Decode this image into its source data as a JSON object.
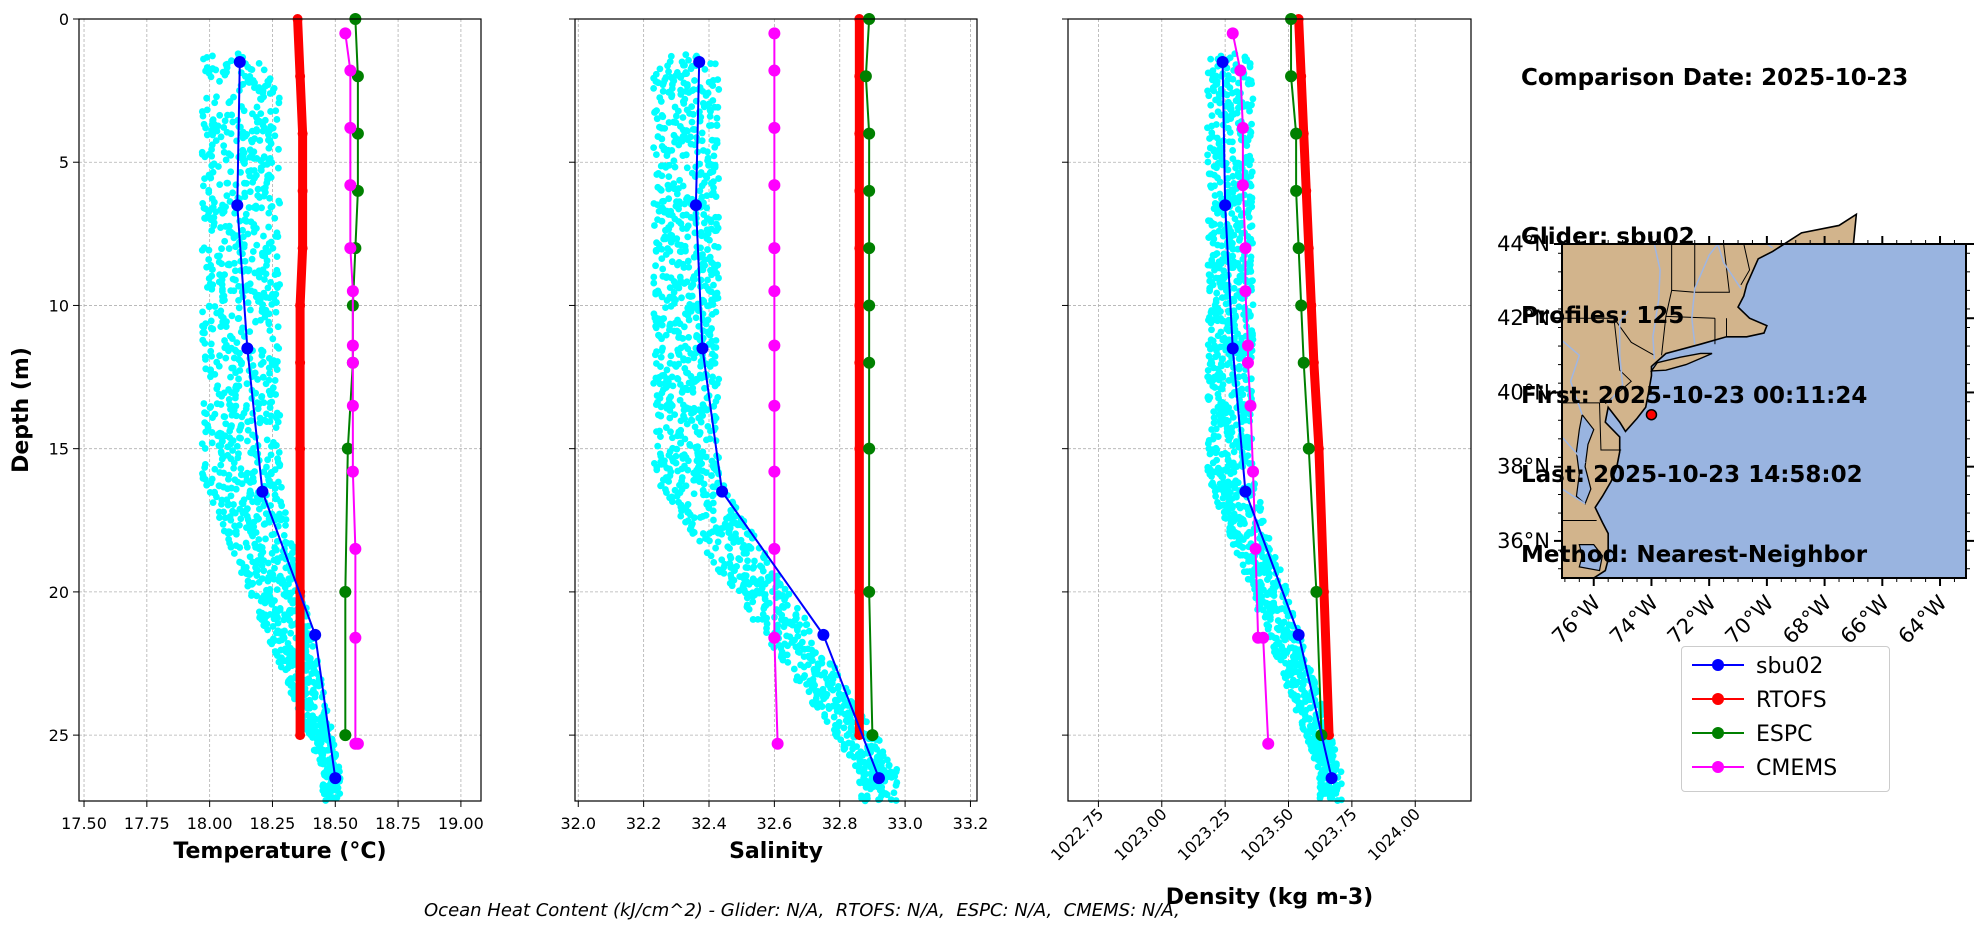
{
  "colors": {
    "sbu02": "#0000ff",
    "rtofs": "#ff0000",
    "espc": "#008000",
    "cmems": "#ff00ff",
    "scatter": "#00ffff",
    "land": "#d2b48c",
    "ocean": "#99b4e0"
  },
  "info": {
    "comparison_date": "Comparison Date: 2025-10-23",
    "glider": "Glider: sbu02",
    "profiles": "Profiles: 125",
    "first": "First: 2025-10-23 00:11:24",
    "last": "Last: 2025-10-23 14:58:02",
    "method": "Method: Nearest-Neighbor"
  },
  "footer": "Ocean Heat Content (kJ/cm^2) - Glider: N/A,  RTOFS: N/A,  ESPC: N/A,  CMEMS: N/A,",
  "legend": [
    "sbu02",
    "RTOFS",
    "ESPC",
    "CMEMS"
  ],
  "chart_data": [
    {
      "type": "line",
      "xlabel": "Temperature (°C)",
      "ylabel": "Depth (m)",
      "xlim": [
        17.48,
        19.08
      ],
      "ylim": [
        27.3,
        0
      ],
      "x_ticks": [
        "17.50",
        "17.75",
        "18.00",
        "18.25",
        "18.50",
        "18.75",
        "19.00"
      ],
      "x_tick_values": [
        17.5,
        17.75,
        18.0,
        18.25,
        18.5,
        18.75,
        19.0
      ],
      "y_ticks": [
        "0",
        "5",
        "10",
        "15",
        "20",
        "25"
      ],
      "y_tick_values": [
        0,
        5,
        10,
        15,
        20,
        25
      ],
      "grid": true,
      "series": [
        {
          "name": "sbu02",
          "x": [
            18.12,
            18.11,
            18.15,
            18.21,
            18.42,
            18.5
          ],
          "y": [
            1.5,
            6.5,
            11.5,
            16.5,
            21.5,
            26.5
          ]
        },
        {
          "name": "RTOFS",
          "x": [
            18.35,
            18.36,
            18.37,
            18.37,
            18.37,
            18.36,
            18.36,
            18.36,
            18.36,
            18.36
          ],
          "y": [
            0,
            2,
            4,
            6,
            8,
            10,
            12,
            15,
            20,
            25
          ]
        },
        {
          "name": "ESPC",
          "x": [
            18.58,
            18.59,
            18.59,
            18.59,
            18.58,
            18.57,
            18.57,
            18.55,
            18.54,
            18.54
          ],
          "y": [
            0,
            2,
            4,
            6,
            8,
            10,
            12,
            15,
            20,
            25
          ]
        },
        {
          "name": "CMEMS",
          "x": [
            18.54,
            18.56,
            18.56,
            18.56,
            18.56,
            18.57,
            18.57,
            18.57,
            18.57,
            18.57,
            18.58,
            18.58,
            18.58,
            18.59
          ],
          "y": [
            0.5,
            1.8,
            3.8,
            5.8,
            8.0,
            9.5,
            11.4,
            12.0,
            13.5,
            15.8,
            18.5,
            21.6,
            25.3,
            25.3
          ]
        }
      ],
      "scatter": {
        "name": "glider observations",
        "depth_range": [
          1.2,
          27.3
        ],
        "x_at_shallow": [
          17.97,
          18.28
        ],
        "x_at_deep": [
          18.45,
          18.52
        ]
      }
    },
    {
      "type": "line",
      "xlabel": "Salinity",
      "xlim": [
        31.99,
        33.22
      ],
      "ylim": [
        27.3,
        0
      ],
      "x_ticks": [
        "32.0",
        "32.2",
        "32.4",
        "32.6",
        "32.8",
        "33.0",
        "33.2"
      ],
      "x_tick_values": [
        32.0,
        32.2,
        32.4,
        32.6,
        32.8,
        33.0,
        33.2
      ],
      "grid": true,
      "series": [
        {
          "name": "sbu02",
          "x": [
            32.37,
            32.36,
            32.38,
            32.44,
            32.75,
            32.92
          ],
          "y": [
            1.5,
            6.5,
            11.5,
            16.5,
            21.5,
            26.5
          ]
        },
        {
          "name": "RTOFS",
          "x": [
            32.86,
            32.86,
            32.86,
            32.86,
            32.86,
            32.86,
            32.86,
            32.86,
            32.86,
            32.86
          ],
          "y": [
            0,
            2,
            4,
            6,
            8,
            10,
            12,
            15,
            20,
            25
          ]
        },
        {
          "name": "ESPC",
          "x": [
            32.89,
            32.88,
            32.89,
            32.89,
            32.89,
            32.89,
            32.89,
            32.89,
            32.89,
            32.9
          ],
          "y": [
            0,
            2,
            4,
            6,
            8,
            10,
            12,
            15,
            20,
            25
          ]
        },
        {
          "name": "CMEMS",
          "x": [
            32.6,
            32.6,
            32.6,
            32.6,
            32.6,
            32.6,
            32.6,
            32.6,
            32.6,
            32.6,
            32.6,
            32.6,
            32.61
          ],
          "y": [
            0.5,
            1.8,
            3.8,
            5.8,
            8.0,
            9.5,
            11.4,
            13.5,
            15.8,
            18.5,
            21.6,
            21.6,
            25.3
          ]
        }
      ],
      "scatter": {
        "name": "glider observations",
        "depth_range": [
          1.2,
          27.3
        ],
        "x_at_shallow": [
          32.23,
          32.43
        ],
        "x_at_deep": [
          32.86,
          32.98
        ]
      }
    },
    {
      "type": "line",
      "xlabel": "Density (kg m-3)",
      "xlim": [
        1022.63,
        1024.22
      ],
      "ylim": [
        27.3,
        0
      ],
      "x_ticks": [
        "1022.75",
        "1023.00",
        "1023.25",
        "1023.50",
        "1023.75",
        "1024.00"
      ],
      "x_tick_values": [
        1022.75,
        1023.0,
        1023.25,
        1023.5,
        1023.75,
        1024.0
      ],
      "grid": true,
      "series": [
        {
          "name": "sbu02",
          "x": [
            1023.24,
            1023.25,
            1023.28,
            1023.33,
            1023.54,
            1023.67
          ],
          "y": [
            1.5,
            6.5,
            11.5,
            16.5,
            21.5,
            26.5
          ]
        },
        {
          "name": "RTOFS",
          "x": [
            1023.54,
            1023.55,
            1023.56,
            1023.57,
            1023.58,
            1023.59,
            1023.6,
            1023.62,
            1023.64,
            1023.66
          ],
          "y": [
            0,
            2,
            4,
            6,
            8,
            10,
            12,
            15,
            20,
            25
          ]
        },
        {
          "name": "ESPC",
          "x": [
            1023.51,
            1023.51,
            1023.53,
            1023.53,
            1023.54,
            1023.55,
            1023.56,
            1023.58,
            1023.61,
            1023.63
          ],
          "y": [
            0,
            2,
            4,
            6,
            8,
            10,
            12,
            15,
            20,
            25
          ]
        },
        {
          "name": "CMEMS",
          "x": [
            1023.28,
            1023.31,
            1023.32,
            1023.32,
            1023.33,
            1023.33,
            1023.34,
            1023.34,
            1023.35,
            1023.36,
            1023.37,
            1023.38,
            1023.4,
            1023.42
          ],
          "y": [
            0.5,
            1.8,
            3.8,
            5.8,
            8.0,
            9.5,
            11.4,
            12.0,
            13.5,
            15.8,
            18.5,
            21.6,
            21.6,
            25.3
          ]
        }
      ],
      "scatter": {
        "name": "glider observations",
        "depth_range": [
          1.2,
          27.3
        ],
        "x_at_shallow": [
          1023.18,
          1023.36
        ],
        "x_at_deep": [
          1023.62,
          1023.71
        ]
      }
    }
  ],
  "map": {
    "lat_ticks": [
      "44°N",
      "42°N",
      "40°N",
      "38°N",
      "36°N"
    ],
    "lat_values": [
      44,
      42,
      40,
      38,
      36
    ],
    "lon_ticks": [
      "76°W",
      "74°W",
      "72°W",
      "70°W",
      "68°W",
      "66°W",
      "64°W"
    ],
    "lon_values": [
      -76,
      -74,
      -72,
      -70,
      -68,
      -66,
      -64
    ],
    "extent_lon": [
      -77.1,
      -63.1
    ],
    "extent_lat": [
      35.0,
      44.0
    ],
    "glider_position": {
      "lon": -74.0,
      "lat": 39.4
    }
  }
}
